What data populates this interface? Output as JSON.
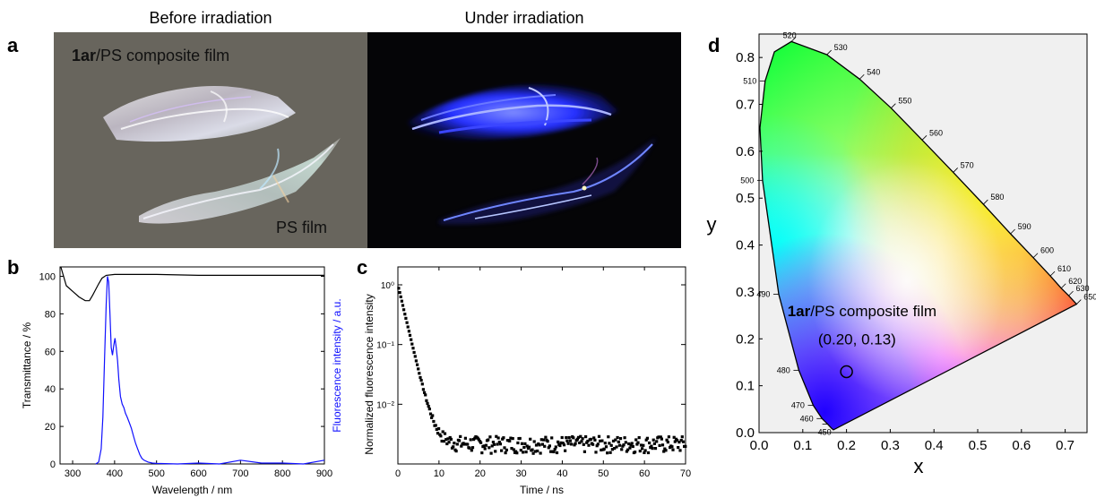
{
  "panel_a": {
    "letter": "a",
    "title_left": "Before irradiation",
    "title_right": "Under irradiation",
    "label_composite_bold": "1ar",
    "label_composite_rest": "/PS composite film",
    "label_ps": "PS film"
  },
  "panel_b": {
    "letter": "b"
  },
  "panel_c": {
    "letter": "c"
  },
  "panel_d": {
    "letter": "d"
  },
  "colors": {
    "photo_left_bg": "#6e6b62",
    "photo_right_bg": "#050507",
    "fluorescence": "#1010ff",
    "transmittance": "#000000"
  },
  "chart_data": [
    {
      "id": "b",
      "type": "line",
      "xlabel": "Wavelength / nm",
      "ylabel_left": "Transmittance / %",
      "ylabel_right": "Fluorescence intensity / a.u.",
      "xlim": [
        270,
        900
      ],
      "ylim": [
        0,
        105
      ],
      "xticks": [
        300,
        400,
        500,
        600,
        700,
        800,
        900
      ],
      "yticks": [
        0,
        20,
        40,
        60,
        80,
        100
      ],
      "series": [
        {
          "name": "Transmittance / %",
          "color": "#000000",
          "x": [
            272,
            285,
            300,
            315,
            330,
            340,
            348,
            355,
            362,
            370,
            380,
            400,
            500,
            600,
            700,
            800,
            900
          ],
          "y": [
            105,
            95,
            92,
            89,
            87,
            87,
            90,
            93,
            96,
            99,
            100.5,
            101,
            101,
            100.5,
            100.5,
            100.5,
            100.5
          ]
        },
        {
          "name": "Fluorescence intensity / a.u.",
          "color": "#1010ff",
          "x": [
            355,
            362,
            368,
            372,
            376,
            380,
            383,
            386,
            389,
            392,
            395,
            398,
            401,
            404,
            407,
            410,
            414,
            418,
            422,
            426,
            430,
            435,
            440,
            445,
            450,
            455,
            460,
            465,
            470,
            480,
            490,
            500,
            550,
            600,
            650,
            700,
            750,
            800,
            850,
            900
          ],
          "y": [
            0,
            1,
            8,
            25,
            55,
            85,
            100,
            97,
            80,
            62,
            58,
            63,
            67,
            62,
            55,
            45,
            36,
            32,
            30,
            27,
            25,
            22,
            19,
            15,
            11,
            8,
            5,
            3,
            2,
            1,
            0.5,
            0.3,
            0,
            0.5,
            0,
            2,
            0.5,
            0.5,
            0,
            2
          ]
        }
      ]
    },
    {
      "id": "c",
      "type": "scatter",
      "xlabel": "Time / ns",
      "ylabel": "Normalized fluorescence intensity",
      "xlim": [
        0,
        70
      ],
      "ylim_log10": [
        -3.0,
        0.3
      ],
      "xticks": [
        0,
        10,
        20,
        30,
        40,
        50,
        60,
        70
      ],
      "ytick_labels": [
        "10⁰",
        "10⁻¹",
        "10⁻²"
      ],
      "ytick_values": [
        1,
        0.1,
        0.01
      ],
      "decay": {
        "amplitude": 1.0,
        "tau_ns": 1.5,
        "baseline": 0.0022,
        "spread": 0.0007,
        "step_ns": 0.25
      },
      "series": [
        {
          "name": "",
          "description_points": "see decay"
        }
      ]
    },
    {
      "id": "d",
      "type": "scatter",
      "xlabel": "x",
      "ylabel": "y",
      "xlim": [
        0,
        0.75
      ],
      "ylim": [
        0,
        0.85
      ],
      "xticks": [
        0.0,
        0.1,
        0.2,
        0.3,
        0.4,
        0.5,
        0.6,
        0.7
      ],
      "yticks": [
        0.0,
        0.1,
        0.2,
        0.3,
        0.4,
        0.5,
        0.6,
        0.7,
        0.8
      ],
      "locus": [
        {
          "nm": 450,
          "x": 0.157,
          "y": 0.018
        },
        {
          "nm": 460,
          "x": 0.144,
          "y": 0.03
        },
        {
          "nm": 470,
          "x": 0.124,
          "y": 0.058
        },
        {
          "nm": 480,
          "x": 0.091,
          "y": 0.133
        },
        {
          "nm": 490,
          "x": 0.045,
          "y": 0.295
        },
        {
          "nm": 500,
          "x": 0.008,
          "y": 0.538
        },
        {
          "nm": 510,
          "x": 0.014,
          "y": 0.75
        },
        {
          "nm": 520,
          "x": 0.074,
          "y": 0.834
        },
        {
          "nm": 530,
          "x": 0.155,
          "y": 0.806
        },
        {
          "nm": 540,
          "x": 0.23,
          "y": 0.754
        },
        {
          "nm": 550,
          "x": 0.302,
          "y": 0.692
        },
        {
          "nm": 560,
          "x": 0.373,
          "y": 0.624
        },
        {
          "nm": 570,
          "x": 0.444,
          "y": 0.555
        },
        {
          "nm": 580,
          "x": 0.513,
          "y": 0.487
        },
        {
          "nm": 590,
          "x": 0.575,
          "y": 0.424
        },
        {
          "nm": 600,
          "x": 0.627,
          "y": 0.373
        },
        {
          "nm": 610,
          "x": 0.666,
          "y": 0.334
        },
        {
          "nm": 620,
          "x": 0.691,
          "y": 0.308
        },
        {
          "nm": 630,
          "x": 0.708,
          "y": 0.292
        },
        {
          "nm": 650,
          "x": 0.726,
          "y": 0.274
        }
      ],
      "extra_locus_points": [
        {
          "x": 0.166,
          "y": 0.009
        },
        {
          "x": 0.17,
          "y": 0.006
        },
        {
          "x": 0.002,
          "y": 0.65
        },
        {
          "x": 0.035,
          "y": 0.812
        }
      ],
      "annotation_bold": "1ar",
      "annotation_rest": "/PS composite film",
      "annotation_coord": "(0.20, 0.13)",
      "point": {
        "x": 0.2,
        "y": 0.13
      }
    }
  ]
}
